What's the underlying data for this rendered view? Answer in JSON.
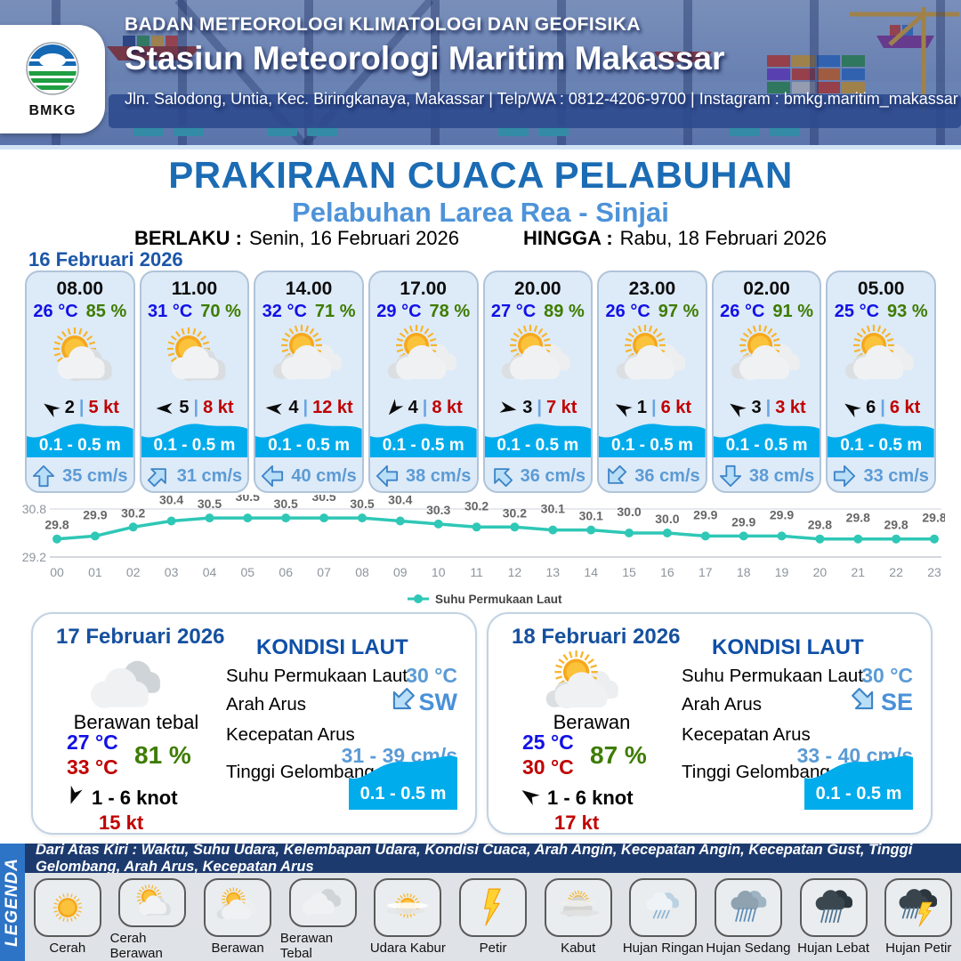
{
  "header": {
    "logo_text": "BMKG",
    "agency": "BADAN METEOROLOGI KLIMATOLOGI DAN GEOFISIKA",
    "station": "Stasiun Meteorologi Maritim Makassar",
    "address": "Jln. Salodong, Untia, Kec. Biringkanaya, Makassar | Telp/WA : 0812-4206-9700 | Instagram : bmkg.maritim_makassar"
  },
  "title": {
    "main": "PRAKIRAAN CUACA PELABUHAN",
    "subtitle": "Pelabuhan Larea Rea - Sinjai",
    "berlaku_label": "BERLAKU :",
    "berlaku_value": "Senin, 16 Februari 2026",
    "hingga_label": "HINGGA :",
    "hingga_value": "Rabu, 18 Februari 2026"
  },
  "forecast_date": "16 Februari 2026",
  "hourly_cards": [
    {
      "time": "08.00",
      "temp": "26 °C",
      "humidity": "85 %",
      "icon": "sun-cloud",
      "wind_dir_deg": 215,
      "wind_value": "2",
      "wind_speed": "5 kt",
      "wave_height": "0.1 - 0.5 m",
      "current_dir": "N",
      "current_dir_deg": 0,
      "current_speed": "35 cm/s"
    },
    {
      "time": "11.00",
      "temp": "31 °C",
      "humidity": "70 %",
      "icon": "sun-cloud",
      "wind_dir_deg": 180,
      "wind_value": "5",
      "wind_speed": "8 kt",
      "wave_height": "0.1 - 0.5 m",
      "current_dir": "NE",
      "current_dir_deg": 45,
      "current_speed": "31 cm/s"
    },
    {
      "time": "14.00",
      "temp": "32 °C",
      "humidity": "71 %",
      "icon": "sun-clouds",
      "wind_dir_deg": 185,
      "wind_value": "4",
      "wind_speed": "12 kt",
      "wave_height": "0.1 - 0.5 m",
      "current_dir": "W",
      "current_dir_deg": 270,
      "current_speed": "40 cm/s"
    },
    {
      "time": "17.00",
      "temp": "29 °C",
      "humidity": "78 %",
      "icon": "sun-clouds",
      "wind_dir_deg": 130,
      "wind_value": "4",
      "wind_speed": "8 kt",
      "wave_height": "0.1 - 0.5 m",
      "current_dir": "W",
      "current_dir_deg": 270,
      "current_speed": "38 cm/s"
    },
    {
      "time": "20.00",
      "temp": "27 °C",
      "humidity": "89 %",
      "icon": "sun-clouds",
      "wind_dir_deg": 10,
      "wind_value": "3",
      "wind_speed": "7 kt",
      "wave_height": "0.1 - 0.5 m",
      "current_dir": "NW",
      "current_dir_deg": 315,
      "current_speed": "36 cm/s"
    },
    {
      "time": "23.00",
      "temp": "26 °C",
      "humidity": "97 %",
      "icon": "sun-clouds",
      "wind_dir_deg": 210,
      "wind_value": "1",
      "wind_speed": "6 kt",
      "wave_height": "0.1 - 0.5 m",
      "current_dir": "SW",
      "current_dir_deg": 225,
      "current_speed": "36 cm/s"
    },
    {
      "time": "02.00",
      "temp": "26 °C",
      "humidity": "91 %",
      "icon": "sun-clouds",
      "wind_dir_deg": 215,
      "wind_value": "3",
      "wind_speed": "3 kt",
      "wave_height": "0.1 - 0.5 m",
      "current_dir": "S",
      "current_dir_deg": 180,
      "current_speed": "38 cm/s"
    },
    {
      "time": "05.00",
      "temp": "25 °C",
      "humidity": "93 %",
      "icon": "sun-clouds",
      "wind_dir_deg": 215,
      "wind_value": "6",
      "wind_speed": "6 kt",
      "wave_height": "0.1 - 0.5 m",
      "current_dir": "E",
      "current_dir_deg": 90,
      "current_speed": "33 cm/s"
    }
  ],
  "chart_data": {
    "type": "line",
    "title": "",
    "xlabel": "",
    "ylabel": "",
    "x": [
      "00",
      "01",
      "02",
      "03",
      "04",
      "05",
      "06",
      "07",
      "08",
      "09",
      "10",
      "11",
      "12",
      "13",
      "14",
      "15",
      "16",
      "17",
      "18",
      "19",
      "20",
      "21",
      "22",
      "23"
    ],
    "series": [
      {
        "name": "Suhu Permukaan Laut",
        "values": [
          29.8,
          29.9,
          30.2,
          30.4,
          30.5,
          30.5,
          30.5,
          30.5,
          30.5,
          30.4,
          30.3,
          30.2,
          30.2,
          30.1,
          30.1,
          30.0,
          30.0,
          29.9,
          29.9,
          29.9,
          29.8,
          29.8,
          29.8,
          29.8
        ]
      }
    ],
    "ylim": [
      29.2,
      30.8
    ],
    "yticks": [
      "30.8",
      "29.2"
    ],
    "line_color": "#2fc7b6",
    "grid": "top-and-baseline-only",
    "legend_position": "bottom"
  },
  "day_cards": [
    {
      "date": "17 Februari 2026",
      "icon": "clouds",
      "condition": "Berawan tebal",
      "temp_min": "27 °C",
      "temp_max": "33 °C",
      "humidity": "81 %",
      "wind_dir_deg": 110,
      "wind_range": "1  - 6 knot",
      "gust": "15 kt",
      "sea": {
        "title": "KONDISI LAUT",
        "sst_label": "Suhu Permukaan Laut",
        "sst_value": "30 °C",
        "current_dir_label": "Arah Arus",
        "current_dir": "SW",
        "current_dir_deg": 225,
        "current_speed_label": "Kecepatan Arus",
        "current_speed": "31 - 39 cm/s",
        "wave_label": "Tinggi Gelombang",
        "wave_value": "0.1 - 0.5 m"
      }
    },
    {
      "date": "18 Februari 2026",
      "icon": "sun-clouds",
      "condition": "Berawan",
      "temp_min": "25 °C",
      "temp_max": "30 °C",
      "humidity": "87 %",
      "wind_dir_deg": 215,
      "wind_range": "1  - 6 knot",
      "gust": "17 kt",
      "sea": {
        "title": "KONDISI LAUT",
        "sst_label": "Suhu Permukaan Laut",
        "sst_value": "30 °C",
        "current_dir_label": "Arah Arus",
        "current_dir": "SE",
        "current_dir_deg": 135,
        "current_speed_label": "Kecepatan Arus",
        "current_speed": "33 - 40 cm/s",
        "wave_label": "Tinggi Gelombang",
        "wave_value": "0.1 - 0.5 m"
      }
    }
  ],
  "legend": {
    "sidebar_label": "LEGENDA",
    "note": "Dari Atas Kiri : Waktu, Suhu Udara, Kelembapan Udara, Kondisi Cuaca, Arah Angin, Kecepatan Angin, Kecepatan Gust, Tinggi Gelombang, Arah Arus, Kecepatan Arus",
    "items": [
      {
        "label": "Cerah",
        "icon": "sun"
      },
      {
        "label": "Cerah Berawan",
        "icon": "sun-cloud"
      },
      {
        "label": "Berawan",
        "icon": "sun-clouds"
      },
      {
        "label": "Berawan Tebal",
        "icon": "clouds"
      },
      {
        "label": "Udara Kabur",
        "icon": "haze-sun"
      },
      {
        "label": "Petir",
        "icon": "lightning"
      },
      {
        "label": "Kabut",
        "icon": "fog"
      },
      {
        "label": "Hujan Ringan",
        "icon": "light-rain"
      },
      {
        "label": "Hujan Sedang",
        "icon": "moderate-rain"
      },
      {
        "label": "Hujan Lebat",
        "icon": "heavy-rain"
      },
      {
        "label": "Hujan Petir",
        "icon": "thunderstorm"
      }
    ]
  },
  "colors": {
    "title_blue": "#1b6cb4",
    "subtitle_blue": "#4e93d9",
    "temp_blue": "#1111e6",
    "humidity_green": "#3e7c00",
    "gust_red": "#c00000",
    "wave_blue": "#00acec",
    "current_blue": "#5b9bd5",
    "chart_teal": "#2fc7b6",
    "legend_navy": "#1c3a6e",
    "legend_side_blue": "#2d74c6"
  }
}
